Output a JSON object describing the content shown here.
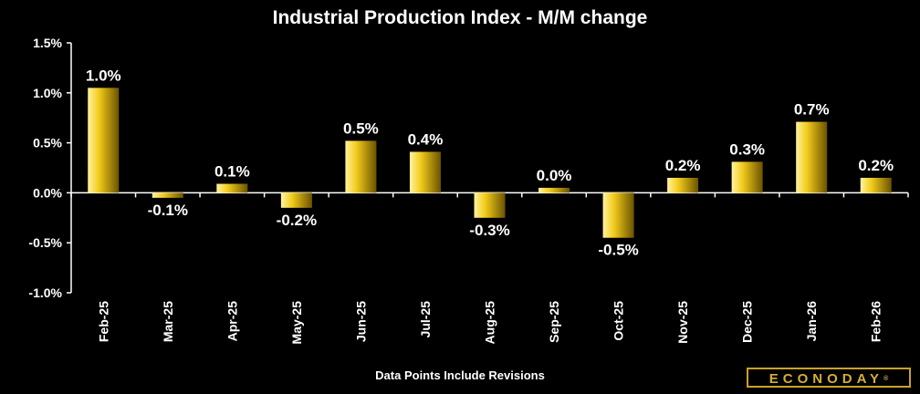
{
  "chart_data": {
    "type": "bar",
    "title": "Industrial Production Index - M/M change",
    "categories": [
      "Feb-25",
      "Mar-25",
      "Apr-25",
      "May-25",
      "Jun-25",
      "Jul-25",
      "Aug-25",
      "Sep-25",
      "Oct-25",
      "Nov-25",
      "Dec-25",
      "Jan-26",
      "Feb-26"
    ],
    "values": [
      1.05,
      -0.05,
      0.09,
      -0.15,
      0.52,
      0.41,
      -0.25,
      0.05,
      -0.45,
      0.15,
      0.31,
      0.71,
      0.15
    ],
    "data_labels": [
      "1.0%",
      "-0.1%",
      "0.1%",
      "-0.2%",
      "0.5%",
      "0.4%",
      "-0.3%",
      "0.0%",
      "-0.5%",
      "0.2%",
      "0.3%",
      "0.7%",
      "0.2%"
    ],
    "y_ticks": [
      1.5,
      1.0,
      0.5,
      0.0,
      -0.5,
      -1.0
    ],
    "y_tick_labels": [
      "1.5%",
      "1.0%",
      "0.5%",
      "0.0%",
      "-0.5%",
      "-1.0%"
    ],
    "ylim": [
      -1.0,
      1.5
    ],
    "xlabel": "",
    "ylabel": "",
    "grid": false,
    "footnote": "Data Points Include Revisions",
    "colors": {
      "background": "#000000",
      "bar_light": "#fff3a0",
      "bar_mid": "#f2cc1c",
      "bar_dark": "#6b5300",
      "axis": "#ffffff"
    }
  },
  "branding": {
    "logo_text": "ECONODAY",
    "logo_mark": "®"
  }
}
